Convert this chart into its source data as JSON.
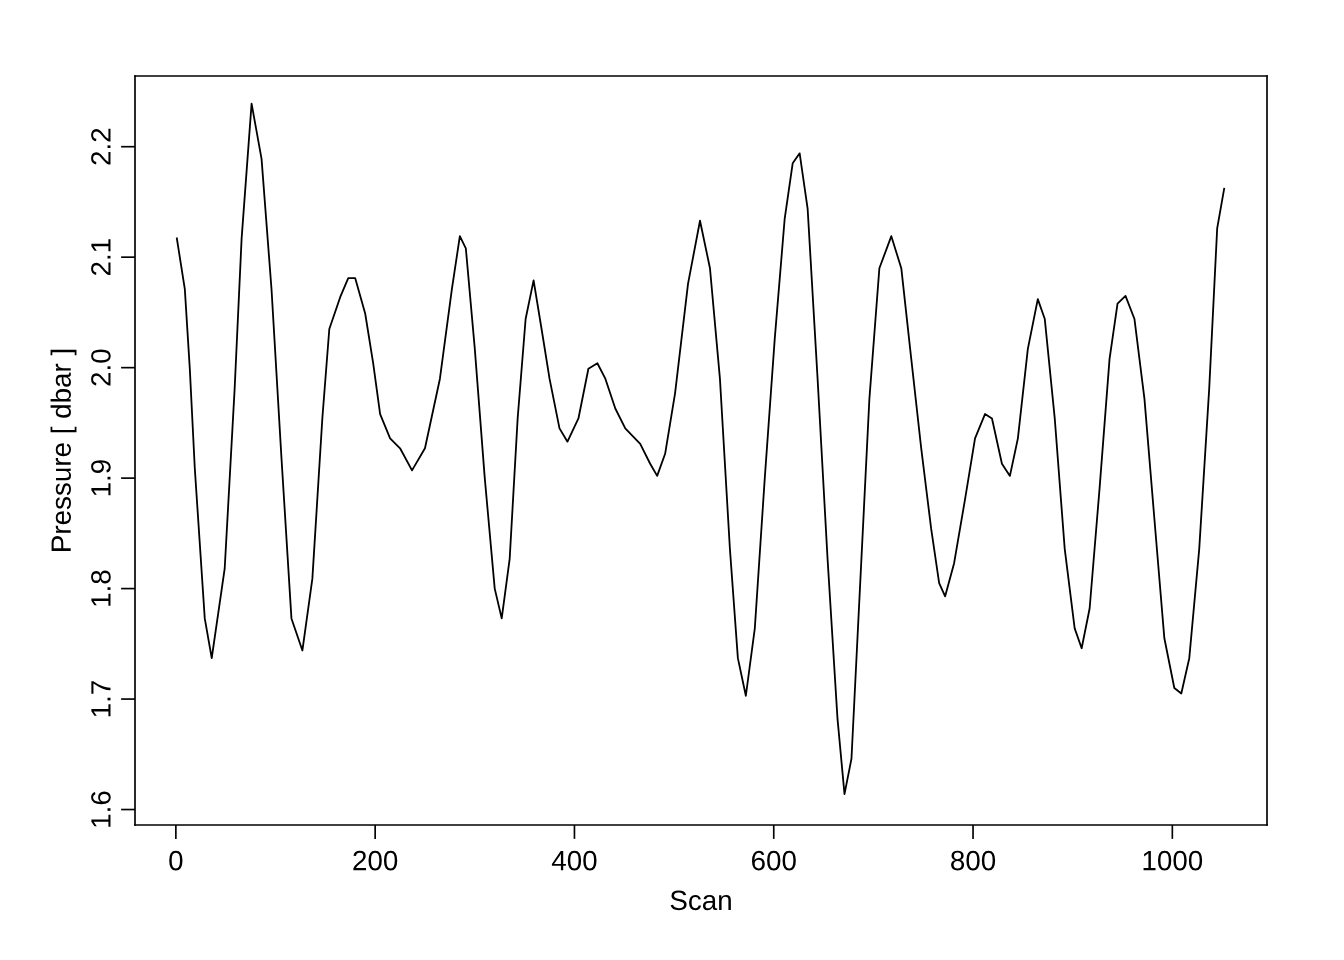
{
  "chart_data": {
    "type": "line",
    "xlabel": "Scan",
    "ylabel": "Pressure [ dbar ]",
    "xlim": [
      -41,
      1095
    ],
    "ylim": [
      1.586,
      2.264
    ],
    "xticks": [
      0,
      200,
      400,
      600,
      800,
      1000
    ],
    "yticks": [
      1.6,
      1.7,
      1.8,
      1.9,
      {
        "value": 2.0,
        "label": "2.0"
      },
      2.1,
      2.2
    ],
    "grid": false,
    "legend": false,
    "marker": "none",
    "line_style": "solid",
    "series": [
      {
        "color": "#000000",
        "x": [
          1,
          9,
          14,
          19,
          29,
          36,
          49,
          59,
          66,
          76,
          86,
          96,
          106,
          116,
          127,
          137,
          147,
          154,
          165,
          173,
          180,
          190,
          198,
          205,
          215,
          225,
          237,
          250,
          265,
          277,
          285,
          291,
          300,
          310,
          320,
          327,
          335,
          343,
          351,
          359,
          367,
          375,
          385,
          393,
          404,
          414,
          423,
          431,
          441,
          451,
          466,
          476,
          483,
          491,
          501,
          514,
          526,
          536,
          546,
          556,
          564,
          572,
          581,
          591,
          601,
          611,
          619,
          626,
          634,
          644,
          654,
          664,
          671,
          678,
          686,
          696,
          706,
          718,
          728,
          738,
          748,
          758,
          766,
          772,
          781,
          792,
          802,
          812,
          819,
          829,
          837,
          845,
          855,
          865,
          872,
          882,
          892,
          902,
          909,
          917,
          927,
          937,
          945,
          953,
          962,
          972,
          982,
          992,
          1002,
          1009,
          1017,
          1027,
          1037,
          1045,
          1052
        ],
        "values": [
          2.117,
          2.071,
          1.999,
          1.909,
          1.773,
          1.737,
          1.818,
          1.981,
          2.117,
          2.239,
          2.189,
          2.071,
          1.918,
          1.773,
          1.744,
          1.809,
          1.954,
          2.035,
          2.064,
          2.081,
          2.081,
          2.049,
          2.004,
          1.958,
          1.936,
          1.927,
          1.907,
          1.927,
          1.99,
          2.071,
          2.119,
          2.108,
          2.017,
          1.9,
          1.8,
          1.773,
          1.827,
          1.954,
          2.044,
          2.079,
          2.035,
          1.99,
          1.945,
          1.933,
          1.954,
          1.999,
          2.004,
          1.99,
          1.963,
          1.945,
          1.931,
          1.913,
          1.902,
          1.922,
          1.977,
          2.076,
          2.133,
          2.09,
          1.99,
          1.836,
          1.737,
          1.703,
          1.764,
          1.9,
          2.026,
          2.135,
          2.185,
          2.194,
          2.144,
          1.99,
          1.827,
          1.682,
          1.614,
          1.646,
          1.791,
          1.972,
          2.09,
          2.119,
          2.09,
          2.008,
          1.927,
          1.854,
          1.805,
          1.793,
          1.823,
          1.881,
          1.936,
          1.958,
          1.954,
          1.913,
          1.902,
          1.936,
          2.017,
          2.062,
          2.044,
          1.954,
          1.836,
          1.764,
          1.746,
          1.782,
          1.891,
          2.008,
          2.058,
          2.065,
          2.044,
          1.972,
          1.863,
          1.755,
          1.71,
          1.705,
          1.737,
          1.836,
          1.981,
          2.126,
          2.162
        ]
      }
    ]
  }
}
